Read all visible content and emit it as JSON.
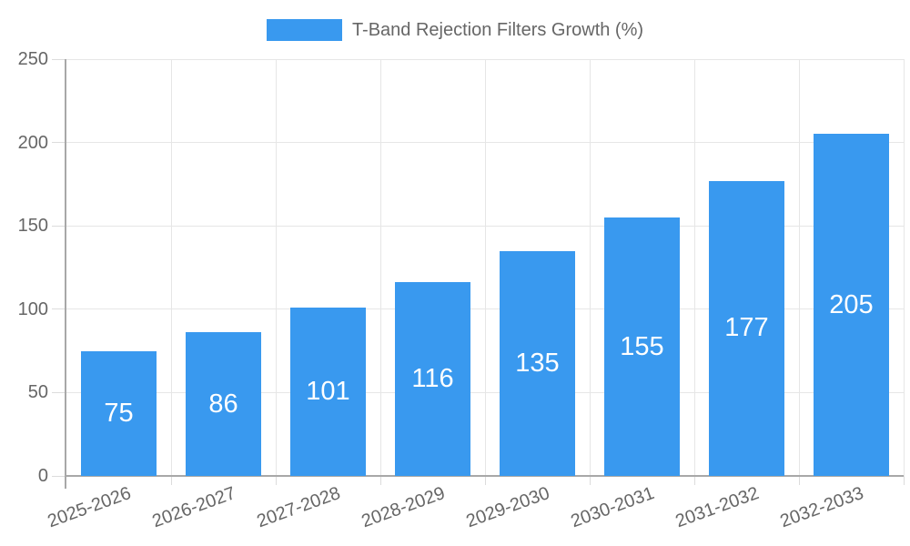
{
  "chart_data": {
    "type": "bar",
    "title": "T-Band Rejection Filters Growth (%)",
    "categories": [
      "2025-2026",
      "2026-2027",
      "2027-2028",
      "2028-2029",
      "2029-2030",
      "2030-2031",
      "2031-2032",
      "2032-2033"
    ],
    "values": [
      75,
      86,
      101,
      116,
      135,
      155,
      177,
      205
    ],
    "series": [
      {
        "name": "T-Band Rejection Filters Growth (%)",
        "values": [
          75,
          86,
          101,
          116,
          135,
          155,
          177,
          205
        ]
      }
    ],
    "xlabel": "",
    "ylabel": "",
    "ylim": [
      0,
      250
    ],
    "yticks": [
      0,
      50,
      100,
      150,
      200,
      250
    ],
    "grid": true,
    "legend_position": "top",
    "x_label_rotation_deg": -20,
    "bar_color": "#3999EF",
    "value_label_color": "#FFFFFF",
    "axis_text_color": "#666666",
    "grid_color": "#E6E6E6",
    "tick_color": "#DCDCDC",
    "axis_line_color": "#A8A8A8",
    "background_color": "#FFFFFF"
  }
}
